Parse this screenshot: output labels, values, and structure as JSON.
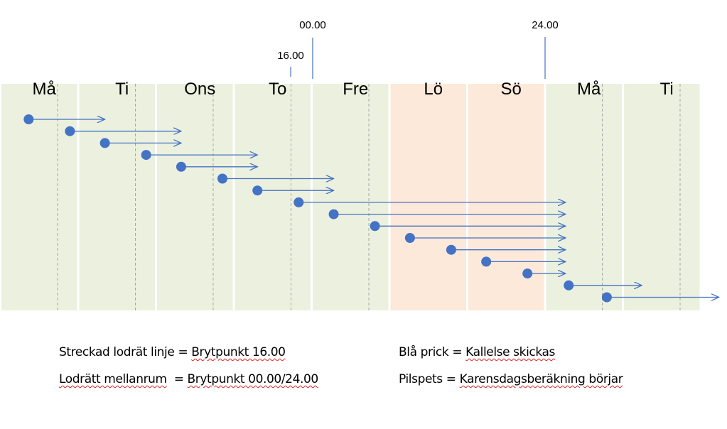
{
  "colors": {
    "weekday_fill": "#ebf1de",
    "weekend_fill": "#fde9d9",
    "dot": "#4472c4",
    "arrow": "#4472c4",
    "dashed": "#a6a6a6",
    "tick": "#4472c4"
  },
  "days": [
    {
      "label": "Må",
      "weekend": false
    },
    {
      "label": "Ti",
      "weekend": false
    },
    {
      "label": "Ons",
      "weekend": false
    },
    {
      "label": "To",
      "weekend": false
    },
    {
      "label": "Fre",
      "weekend": false
    },
    {
      "label": "Lö",
      "weekend": true
    },
    {
      "label": "Sö",
      "weekend": true
    },
    {
      "label": "Må",
      "weekend": false
    },
    {
      "label": "Ti",
      "weekend": false
    }
  ],
  "time_markers": {
    "breakpoint_1600": "16.00",
    "breakpoint_0000": "00.00",
    "breakpoint_2400": "24.00"
  },
  "events": [
    {
      "dot_day": 0.35,
      "arrow_day": 1.33
    },
    {
      "dot_day": 0.88,
      "arrow_day": 2.31
    },
    {
      "dot_day": 1.33,
      "arrow_day": 2.31
    },
    {
      "dot_day": 1.86,
      "arrow_day": 3.29
    },
    {
      "dot_day": 2.31,
      "arrow_day": 3.29
    },
    {
      "dot_day": 2.84,
      "arrow_day": 4.27
    },
    {
      "dot_day": 3.29,
      "arrow_day": 4.27
    },
    {
      "dot_day": 3.82,
      "arrow_day": 7.25
    },
    {
      "dot_day": 4.27,
      "arrow_day": 7.25
    },
    {
      "dot_day": 4.8,
      "arrow_day": 7.25
    },
    {
      "dot_day": 5.25,
      "arrow_day": 7.25
    },
    {
      "dot_day": 5.78,
      "arrow_day": 7.25
    },
    {
      "dot_day": 6.23,
      "arrow_day": 7.25
    },
    {
      "dot_day": 6.76,
      "arrow_day": 7.25
    },
    {
      "dot_day": 7.29,
      "arrow_day": 8.23
    },
    {
      "dot_day": 7.78,
      "arrow_day": 9.22
    }
  ],
  "legend": {
    "dashed_key": "Streckad lodrät linje",
    "dashed_eq": " = ",
    "dashed_value": "Brytpunkt 16.00",
    "gap_key": "Lodrätt mellanrum",
    "gap_eq": "  = ",
    "gap_value": "Brytpunkt 00.00/24.00",
    "dot_key": "Blå prick",
    "dot_eq": " = ",
    "dot_value": "Kallelse skickas",
    "arrow_key": "Pilspets",
    "arrow_eq": " = ",
    "arrow_value": "Karensdagsberäkning börjar"
  }
}
